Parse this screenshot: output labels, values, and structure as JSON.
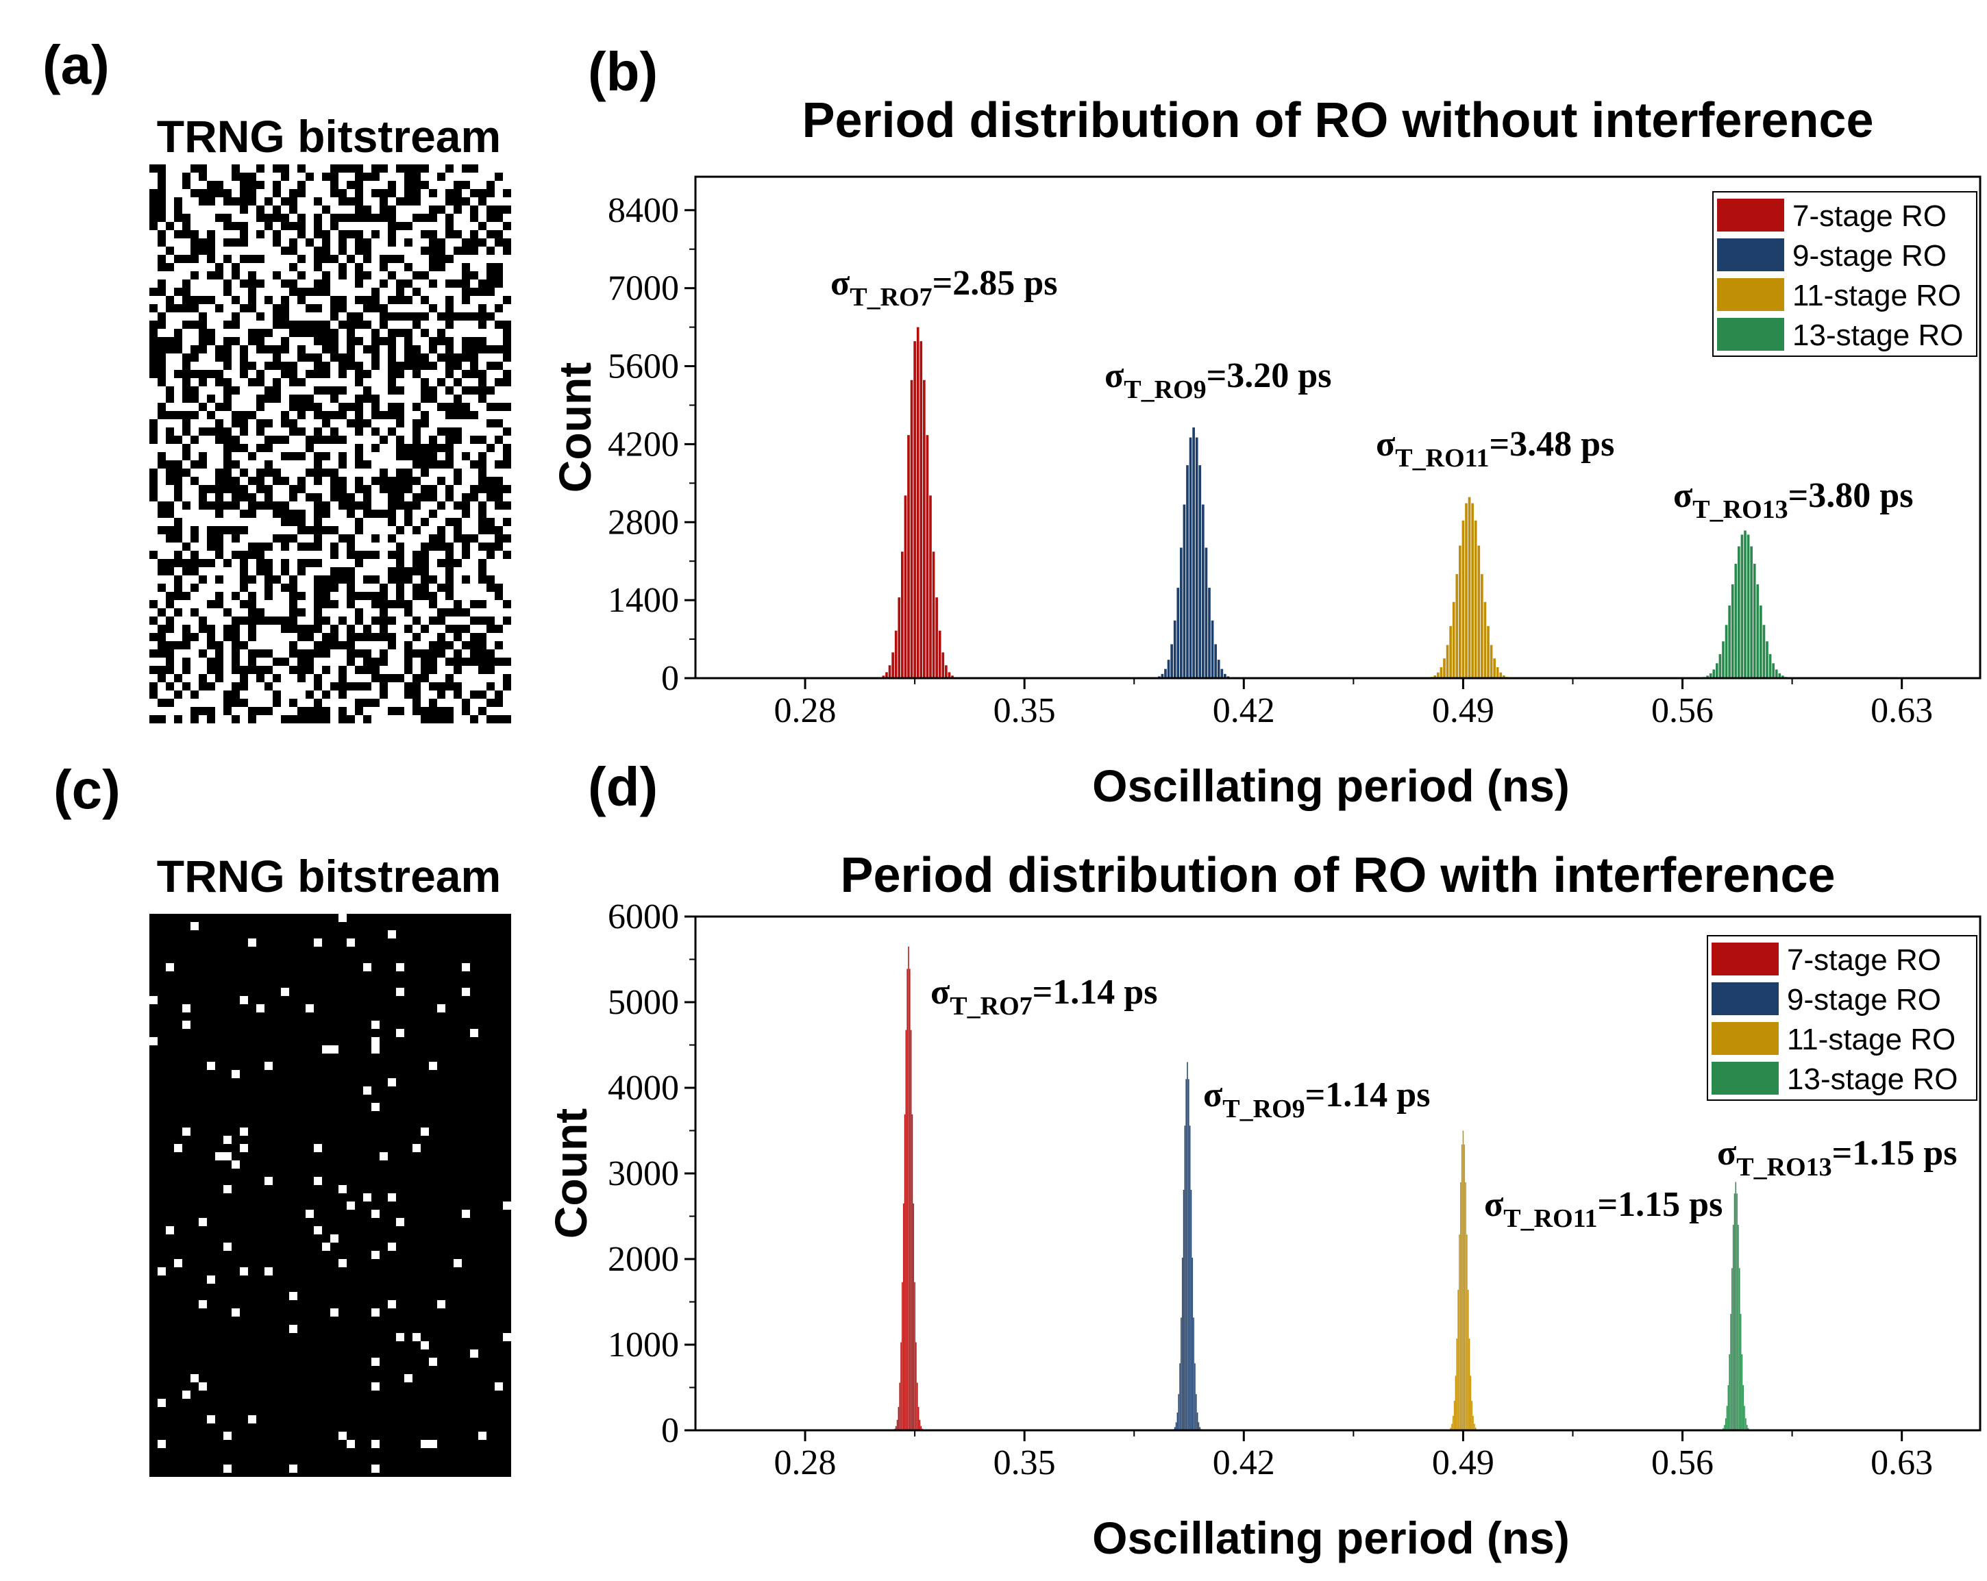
{
  "panel_labels": {
    "a": "(a)",
    "b": "(b)",
    "c": "(c)",
    "d": "(d)"
  },
  "bitstream_titles": {
    "a": "TRNG bitstream",
    "c": "TRNG bitstream"
  },
  "colors": {
    "7-stage RO": "#b10e0e",
    "9-stage RO": "#1f3f6b",
    "11-stage RO": "#c08f06",
    "13-stage RO": "#2a8a4e"
  },
  "chart_data": [
    {
      "type": "bar",
      "panel": "(b)",
      "title": "Period distribution of RO without interference",
      "xlabel": "Oscillating period (ns)",
      "ylabel": "Count",
      "xlim": [
        0.245,
        0.655
      ],
      "ylim": [
        0,
        9000
      ],
      "xticks": [
        "0.28",
        "0.35",
        "0.42",
        "0.49",
        "0.56",
        "0.63"
      ],
      "yticks": [
        "0",
        "1400",
        "2800",
        "4200",
        "5600",
        "7000",
        "8400"
      ],
      "legend_position": "top-right",
      "bin_width": 0.001,
      "series": [
        {
          "name": "7-stage RO",
          "mean": 0.316,
          "peak": 6300,
          "sigma": 0.0035,
          "annotation": "=2.85 ps",
          "ann_sub": "T_RO7"
        },
        {
          "name": "9-stage RO",
          "mean": 0.404,
          "peak": 4500,
          "sigma": 0.0035,
          "annotation": "=3.20 ps",
          "ann_sub": "T_RO9"
        },
        {
          "name": "11-stage RO",
          "mean": 0.492,
          "peak": 3250,
          "sigma": 0.0038,
          "annotation": "=3.48 ps",
          "ann_sub": "T_RO11"
        },
        {
          "name": "13-stage RO",
          "mean": 0.58,
          "peak": 2650,
          "sigma": 0.0042,
          "annotation": "=3.80 ps",
          "ann_sub": "T_RO13"
        }
      ]
    },
    {
      "type": "bar",
      "panel": "(d)",
      "title": "Period distribution of RO with interference",
      "xlabel": "Oscillating period (ns)",
      "ylabel": "Count",
      "xlim": [
        0.245,
        0.655
      ],
      "ylim": [
        0,
        6000
      ],
      "xticks": [
        "0.28",
        "0.35",
        "0.42",
        "0.49",
        "0.56",
        "0.63"
      ],
      "yticks": [
        "0",
        "1000",
        "2000",
        "3000",
        "4000",
        "5000",
        "6000"
      ],
      "legend_position": "top-right",
      "bin_width": 0.0004,
      "series": [
        {
          "name": "7-stage RO",
          "mean": 0.313,
          "peak": 5650,
          "sigma": 0.0013,
          "annotation": "=1.14 ps",
          "ann_sub": "T_RO7"
        },
        {
          "name": "9-stage RO",
          "mean": 0.402,
          "peak": 4300,
          "sigma": 0.0013,
          "annotation": "=1.14 ps",
          "ann_sub": "T_RO9"
        },
        {
          "name": "11-stage RO",
          "mean": 0.49,
          "peak": 3500,
          "sigma": 0.0013,
          "annotation": "=1.15 ps",
          "ann_sub": "T_RO11"
        },
        {
          "name": "13-stage RO",
          "mean": 0.577,
          "peak": 2900,
          "sigma": 0.0013,
          "annotation": "=1.15 ps",
          "ann_sub": "T_RO13"
        }
      ]
    }
  ]
}
